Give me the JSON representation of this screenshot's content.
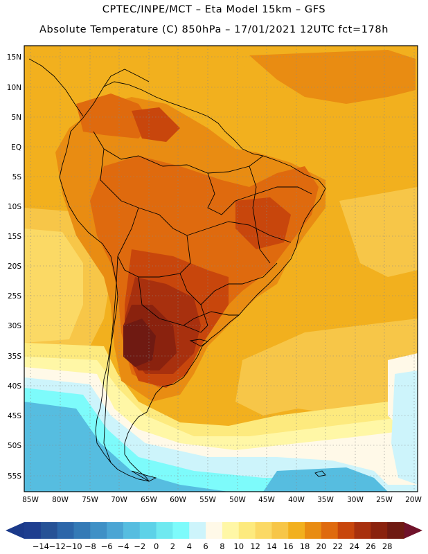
{
  "header": {
    "line1": "CPTEC/INPE/MCT –  Eta Model 15km – GFS",
    "line2": "Absolute Temperature (C) 850hPa – 17/01/2021 12UTC fct=178h"
  },
  "map": {
    "region": "South America",
    "lat_labels": [
      "15N",
      "10N",
      "5N",
      "EQ",
      "5S",
      "10S",
      "15S",
      "20S",
      "25S",
      "30S",
      "35S",
      "40S",
      "45S",
      "50S",
      "55S"
    ],
    "lon_labels": [
      "85W",
      "80W",
      "75W",
      "70W",
      "65W",
      "60W",
      "55W",
      "50W",
      "45W",
      "40W",
      "35W",
      "30W",
      "25W",
      "20W"
    ]
  },
  "colorbar": {
    "labels": [
      "-14",
      "-12",
      "-10",
      "-8",
      "-6",
      "-4",
      "-2",
      "0",
      "2",
      "4",
      "6",
      "8",
      "10",
      "12",
      "14",
      "16",
      "18",
      "20",
      "22",
      "24",
      "26",
      "28"
    ],
    "colors": [
      "#1e3e8f",
      "#265296",
      "#2c66a9",
      "#347ab6",
      "#3f90c6",
      "#4ba5d4",
      "#56bde0",
      "#5dd2e8",
      "#6fe9f0",
      "#7dfbfb",
      "#cdf4fb",
      "#fff9e8",
      "#fff7a6",
      "#fdea7e",
      "#fbd965",
      "#f7c648",
      "#f2b01e",
      "#e98c12",
      "#df6a0e",
      "#c8460c",
      "#a8300e",
      "#8a220e",
      "#6f1a12"
    ],
    "left_arrow_color": "#1b3a8a",
    "right_arrow_color": "#70122a"
  }
}
